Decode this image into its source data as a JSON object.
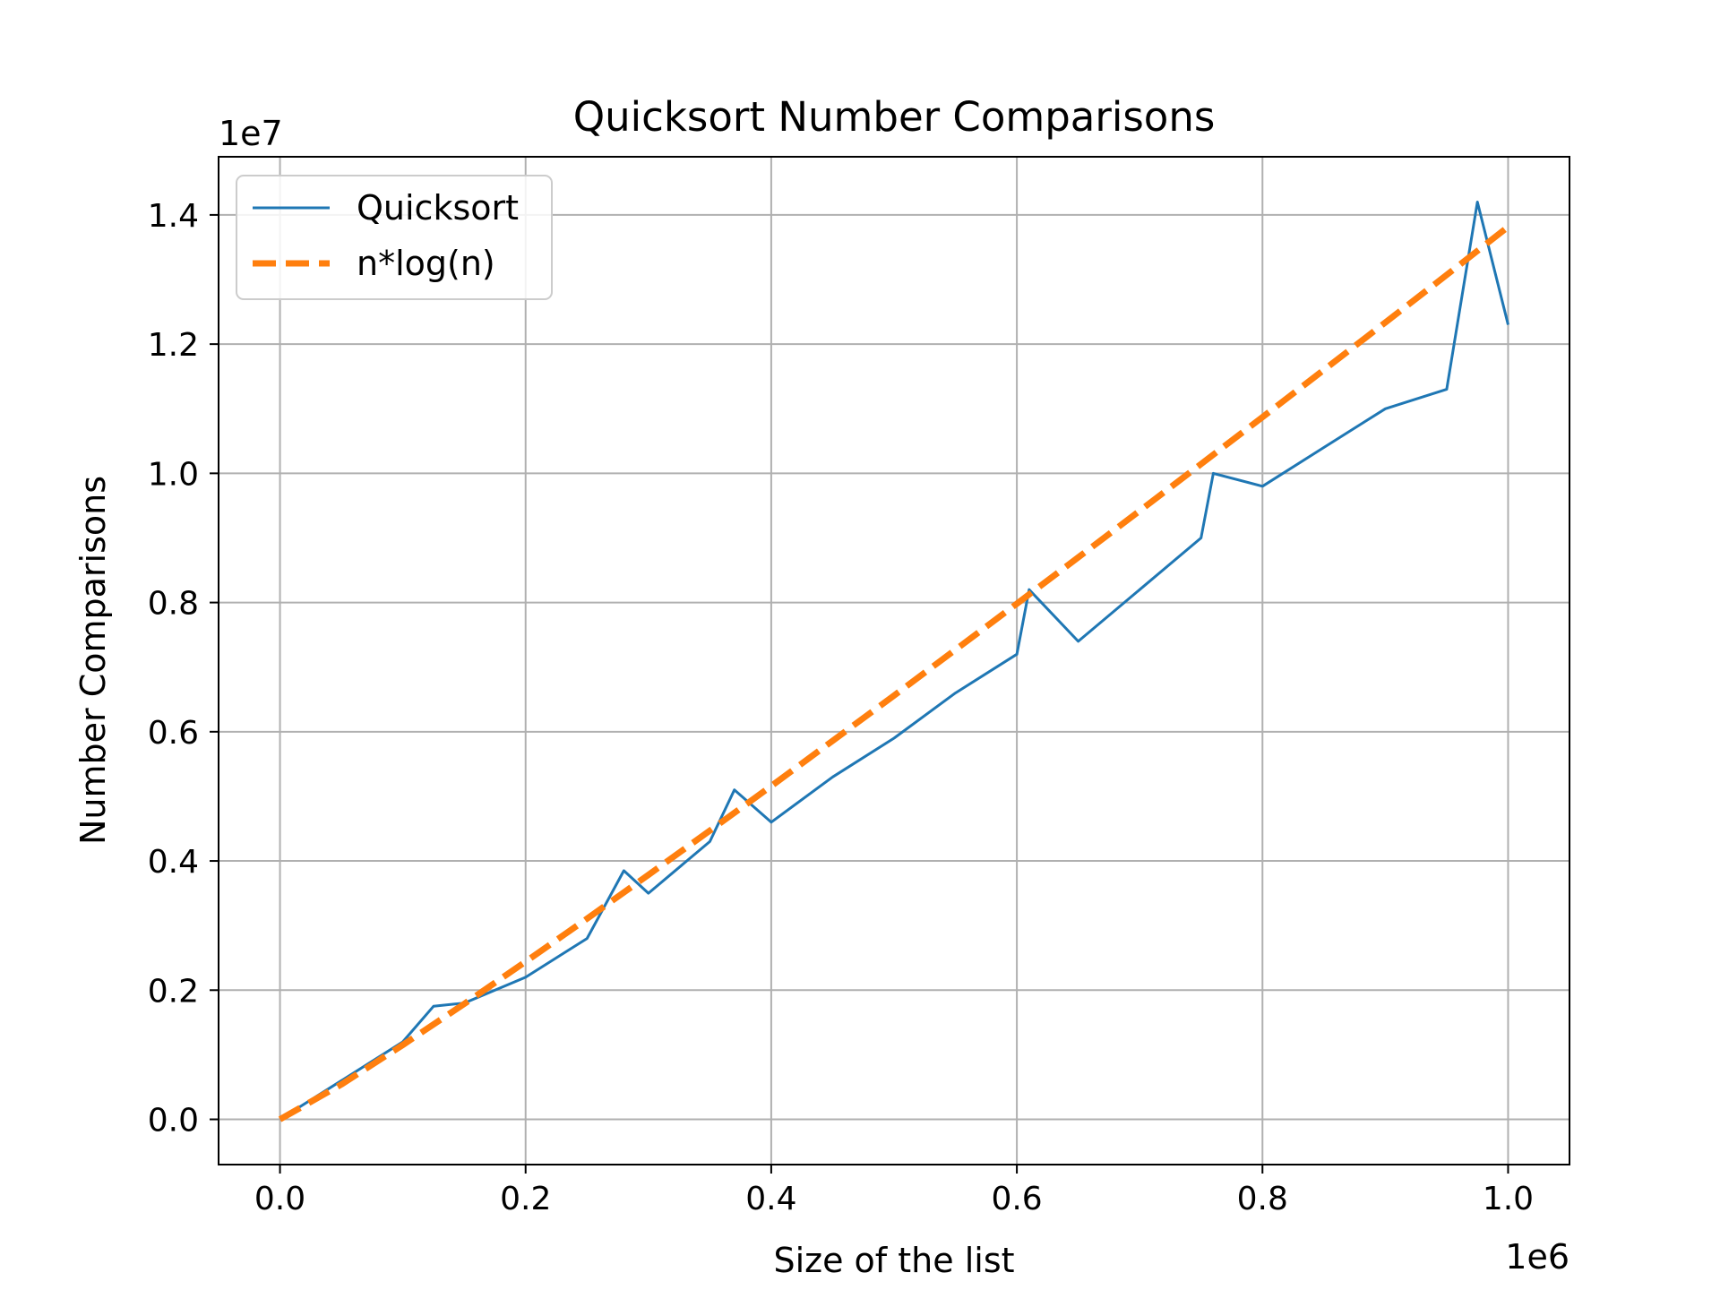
{
  "chart_data": {
    "type": "line",
    "title": "Quicksort Number Comparisons",
    "xlabel": "Size of the list",
    "ylabel": "Number Comparisons",
    "x_offset_label": "1e6",
    "y_offset_label": "1e7",
    "x_unit": 1000000,
    "y_unit": 10000000,
    "xlim": [
      -50000,
      1050000
    ],
    "ylim": [
      -700000,
      14900000
    ],
    "xticks": [
      0,
      200000,
      400000,
      600000,
      800000,
      1000000
    ],
    "xtick_labels": [
      "0.0",
      "0.2",
      "0.4",
      "0.6",
      "0.8",
      "1.0"
    ],
    "yticks": [
      0,
      2000000,
      4000000,
      6000000,
      8000000,
      10000000,
      12000000,
      14000000
    ],
    "ytick_labels": [
      "0.0",
      "0.2",
      "0.4",
      "0.6",
      "0.8",
      "1.0",
      "1.2",
      "1.4"
    ],
    "grid": true,
    "legend_position": "upper-left",
    "series": [
      {
        "name": "Quicksort",
        "color": "#1f77b4",
        "style": "solid",
        "x": [
          0,
          50000,
          100000,
          125000,
          150000,
          200000,
          250000,
          280000,
          300000,
          350000,
          370000,
          400000,
          450000,
          500000,
          550000,
          600000,
          610000,
          650000,
          700000,
          750000,
          760000,
          800000,
          850000,
          900000,
          950000,
          975000,
          1000000
        ],
        "y": [
          0,
          600000,
          1200000,
          1750000,
          1800000,
          2200000,
          2800000,
          3850000,
          3500000,
          4300000,
          5100000,
          4600000,
          5300000,
          5900000,
          6600000,
          7200000,
          8200000,
          7400000,
          8200000,
          9000000,
          10000000,
          9800000,
          10400000,
          11000000,
          11300000,
          14200000,
          12300000
        ]
      },
      {
        "name": "n*log(n)",
        "color": "#ff7f0e",
        "style": "dashed",
        "x": [
          0,
          50000,
          100000,
          150000,
          200000,
          250000,
          300000,
          350000,
          400000,
          450000,
          500000,
          550000,
          600000,
          650000,
          700000,
          750000,
          800000,
          850000,
          900000,
          950000,
          1000000
        ],
        "y": [
          0,
          541000,
          1151000,
          1788000,
          2441000,
          3107000,
          3784000,
          4469000,
          5159000,
          5860000,
          6561000,
          7269000,
          7982000,
          8699000,
          9420000,
          10144000,
          10871000,
          11601000,
          12335000,
          13071000,
          13816000
        ]
      }
    ]
  }
}
